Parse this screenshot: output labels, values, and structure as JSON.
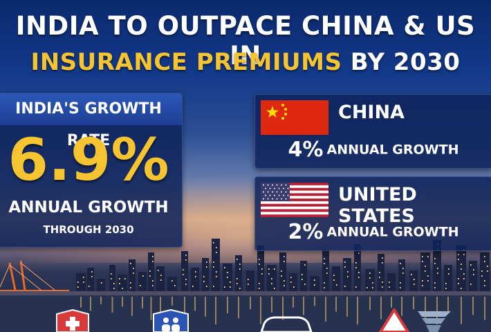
{
  "title": {
    "line1": "INDIA TO OUTPACE CHINA & US IN",
    "line2_highlight": "INSURANCE PREMIUMS",
    "line2_rest": "BY 2030"
  },
  "india": {
    "heading": "INDIA'S GROWTH RATE",
    "rate": "6.9%",
    "label": "ANNUAL GROWTH",
    "subtext": "THROUGH 2030"
  },
  "china": {
    "name": "CHINA",
    "rate": "4%",
    "label": "ANNUAL GROWTH",
    "flag_icon": "china-flag-icon"
  },
  "us": {
    "name": "UNITED STATES",
    "rate": "2%",
    "label": "ANNUAL GROWTH",
    "flag_icon": "us-flag-icon"
  },
  "bottom_icons": [
    "health-shield-icon",
    "family-shield-icon",
    "car-icon",
    "warning-icon"
  ],
  "colors": {
    "accent_gold": "#f6c431",
    "panel_blue": "#0e235a",
    "header_blue": "#2b58b8",
    "china_red": "#de2910",
    "us_red": "#b22234",
    "us_blue": "#3c3b6e"
  }
}
